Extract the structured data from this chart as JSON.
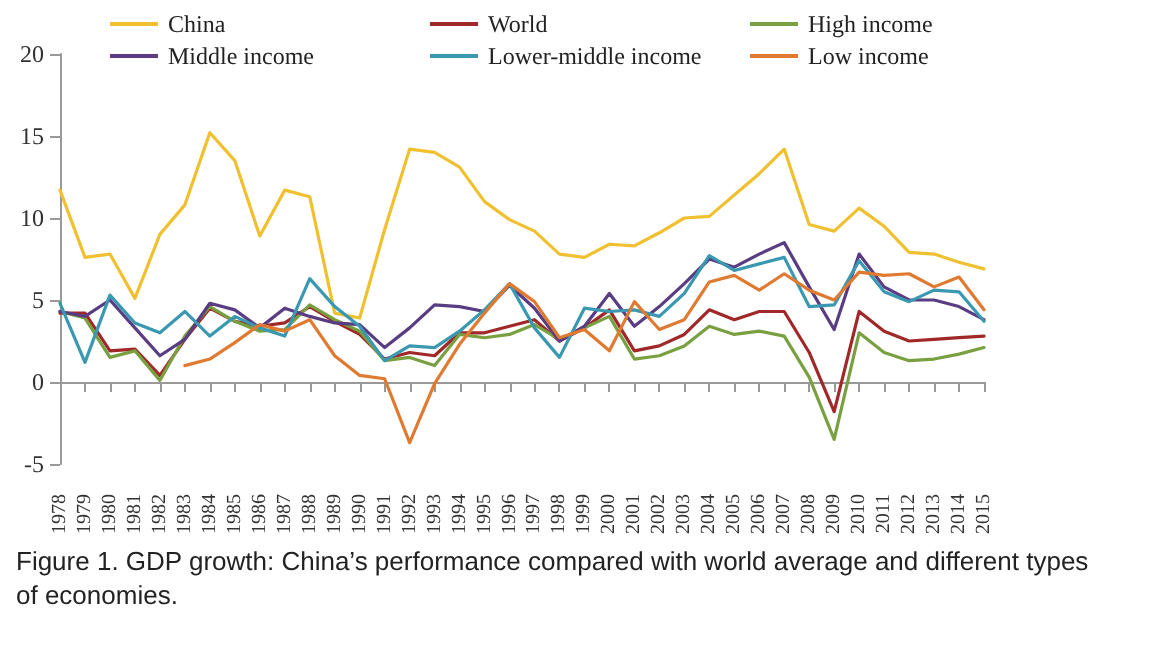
{
  "chart_data": {
    "type": "line",
    "categories": [
      "1978",
      "1979",
      "1980",
      "1981",
      "1982",
      "1983",
      "1984",
      "1985",
      "1986",
      "1987",
      "1988",
      "1989",
      "1990",
      "1991",
      "1992",
      "1993",
      "1994",
      "1995",
      "1996",
      "1997",
      "1998",
      "1999",
      "2000",
      "2001",
      "2002",
      "2003",
      "2004",
      "2005",
      "2006",
      "2007",
      "2008",
      "2009",
      "2010",
      "2011",
      "2012",
      "2013",
      "2014",
      "2015"
    ],
    "series": [
      {
        "name": "China",
        "color": "#f0c030",
        "values": [
          11.7,
          7.6,
          7.8,
          5.1,
          9.0,
          10.8,
          15.2,
          13.5,
          8.9,
          11.7,
          11.3,
          4.2,
          3.9,
          9.3,
          14.2,
          14.0,
          13.1,
          11.0,
          9.9,
          9.2,
          7.8,
          7.6,
          8.4,
          8.3,
          9.1,
          10.0,
          10.1,
          11.4,
          12.7,
          14.2,
          9.6,
          9.2,
          10.6,
          9.5,
          7.9,
          7.8,
          7.3,
          6.9
        ]
      },
      {
        "name": "World",
        "color": "#a02828",
        "values": [
          4.2,
          4.2,
          1.9,
          2.0,
          0.4,
          2.6,
          4.5,
          3.7,
          3.4,
          3.6,
          4.6,
          3.7,
          2.9,
          1.4,
          1.8,
          1.6,
          3.0,
          3.0,
          3.4,
          3.8,
          2.5,
          3.3,
          4.4,
          1.9,
          2.2,
          2.9,
          4.4,
          3.8,
          4.3,
          4.3,
          1.8,
          -1.8,
          4.3,
          3.1,
          2.5,
          2.6,
          2.7,
          2.8
        ]
      },
      {
        "name": "High income",
        "color": "#78a040",
        "values": [
          4.3,
          3.9,
          1.5,
          1.9,
          0.1,
          2.8,
          4.6,
          3.7,
          3.1,
          3.2,
          4.7,
          3.8,
          3.1,
          1.3,
          1.5,
          1.0,
          2.9,
          2.7,
          2.9,
          3.5,
          2.6,
          3.3,
          4.0,
          1.4,
          1.6,
          2.2,
          3.4,
          2.9,
          3.1,
          2.8,
          0.3,
          -3.5,
          3.0,
          1.8,
          1.3,
          1.4,
          1.7,
          2.1
        ]
      },
      {
        "name": "Middle income",
        "color": "#5a3c82",
        "values": [
          4.3,
          4.0,
          5.0,
          3.3,
          1.6,
          2.6,
          4.8,
          4.4,
          3.3,
          4.5,
          4.0,
          3.6,
          3.5,
          2.1,
          3.3,
          4.7,
          4.6,
          4.3,
          5.9,
          4.5,
          2.5,
          3.4,
          5.4,
          3.4,
          4.6,
          6.0,
          7.5,
          7.0,
          7.8,
          8.5,
          5.8,
          3.2,
          7.8,
          5.8,
          5.0,
          5.0,
          4.6,
          3.8
        ]
      },
      {
        "name": "Lower-middle income",
        "color": "#3a98b0",
        "values": [
          4.8,
          1.2,
          5.3,
          3.6,
          3.0,
          4.3,
          2.8,
          4.0,
          3.3,
          2.8,
          6.3,
          4.6,
          3.4,
          1.3,
          2.2,
          2.1,
          3.1,
          4.4,
          6.0,
          3.3,
          1.5,
          4.5,
          4.3,
          4.4,
          4.0,
          5.4,
          7.7,
          6.8,
          7.2,
          7.6,
          4.6,
          4.7,
          7.4,
          5.5,
          4.9,
          5.6,
          5.5,
          3.7
        ]
      },
      {
        "name": "Low income",
        "color": "#e07a30",
        "values": [
          null,
          null,
          null,
          null,
          null,
          1.0,
          1.4,
          2.4,
          3.5,
          3.1,
          3.8,
          1.6,
          0.4,
          0.2,
          -3.7,
          -0.1,
          2.3,
          4.2,
          6.0,
          4.9,
          2.7,
          3.2,
          1.9,
          4.9,
          3.2,
          3.8,
          6.1,
          6.5,
          5.6,
          6.6,
          5.6,
          5.0,
          6.7,
          6.5,
          6.6,
          5.8,
          6.4,
          4.4
        ]
      }
    ],
    "ylim": [
      -5,
      20
    ],
    "yticks": [
      -5,
      0,
      5,
      10,
      15,
      20
    ],
    "legend": "top",
    "marker": "none",
    "line_style": "solid",
    "annotations": [
      "Figure 1. GDP growth: China’s performance compared with world average and different types of economies."
    ]
  }
}
